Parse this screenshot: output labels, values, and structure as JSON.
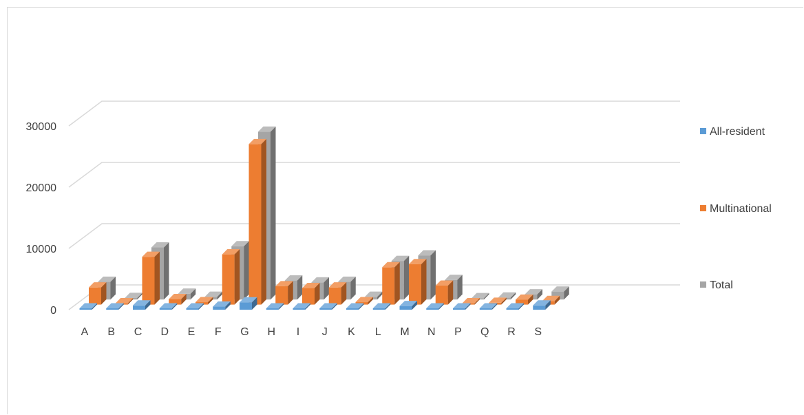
{
  "chart_data": {
    "type": "bar",
    "categories": [
      "A",
      "B",
      "C",
      "D",
      "E",
      "F",
      "G",
      "H",
      "I",
      "J",
      "K",
      "L",
      "M",
      "N",
      "P",
      "Q",
      "R",
      "S"
    ],
    "series": [
      {
        "name": "All-resident",
        "color": "#5b9bd5",
        "values": [
          150,
          50,
          700,
          50,
          50,
          500,
          1200,
          100,
          100,
          100,
          50,
          200,
          600,
          100,
          20,
          20,
          50,
          700
        ]
      },
      {
        "name": "Multinational",
        "color": "#ed7d31",
        "values": [
          2800,
          200,
          7800,
          900,
          400,
          8200,
          26200,
          3000,
          2700,
          2800,
          400,
          6100,
          6600,
          3100,
          200,
          300,
          800,
          600
        ]
      },
      {
        "name": "Total",
        "color": "#a5a5a5",
        "values": [
          2900,
          250,
          8500,
          950,
          450,
          8700,
          27400,
          3100,
          2800,
          2900,
          450,
          6300,
          7200,
          3200,
          220,
          320,
          850,
          1300
        ]
      }
    ],
    "yticks": [
      0,
      10000,
      20000,
      30000
    ],
    "ylim": [
      0,
      30000
    ],
    "legend_position": "right",
    "grid": true
  }
}
